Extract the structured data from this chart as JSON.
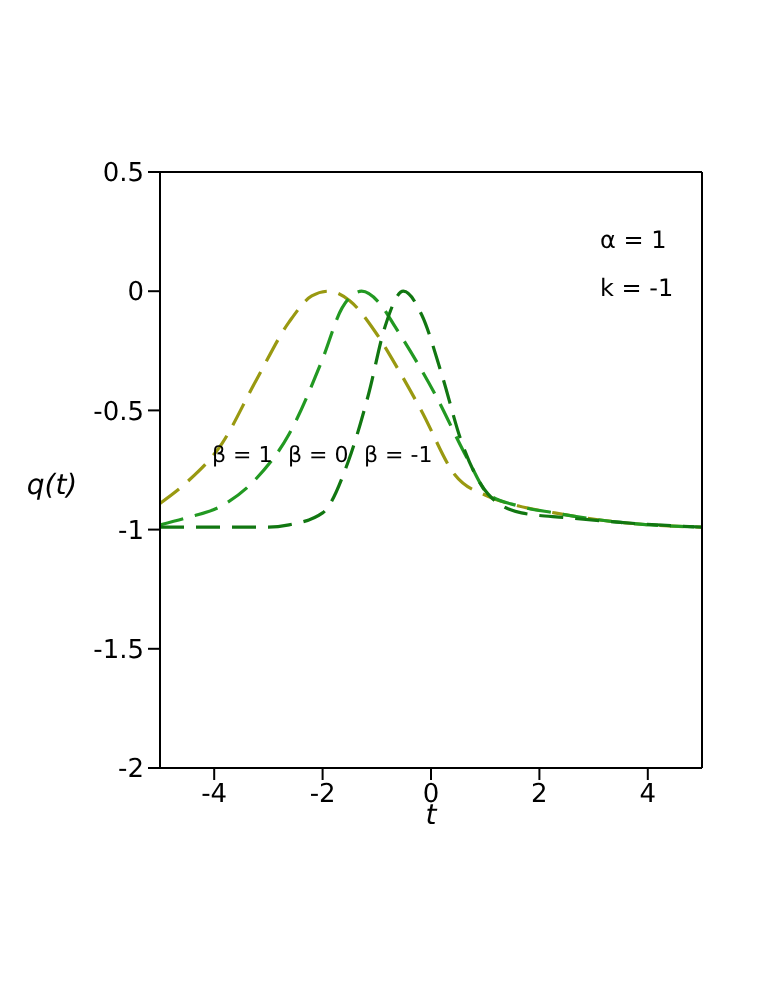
{
  "chart_data": {
    "type": "line",
    "xlabel": "t",
    "ylabel": "q(t)",
    "xlim": [
      -5,
      5
    ],
    "ylim": [
      -2,
      0.5
    ],
    "xticks": [
      -4,
      -2,
      0,
      2,
      4
    ],
    "yticks": [
      -2,
      -1.5,
      -1,
      -0.5,
      0,
      0.5
    ],
    "grid": false,
    "legend": false,
    "line_style": "dashed",
    "marker": "none",
    "annotations": [
      "α = 1",
      "k = -1",
      "β = 1",
      "β = 0",
      "β = -1"
    ],
    "series": [
      {
        "color": "#999911",
        "x": [
          -5,
          -4.5,
          -3.86,
          -3.24,
          -2.62,
          -2.2,
          -1.89,
          -1.5,
          -1.03,
          -0.6,
          -0.18,
          0.44,
          1.05,
          1.6,
          2.28,
          3.5,
          5
        ],
        "values": [
          -0.89,
          -0.8,
          -0.64,
          -0.38,
          -0.13,
          -0.02,
          0,
          -0.04,
          -0.17,
          -0.33,
          -0.5,
          -0.77,
          -0.86,
          -0.9,
          -0.93,
          -0.97,
          -0.99
        ]
      },
      {
        "color": "#229922",
        "x": [
          -5,
          -4.5,
          -3.86,
          -3.24,
          -2.62,
          -2.01,
          -1.64,
          -1.28,
          -0.95,
          -0.66,
          0.07,
          0.69,
          1.05,
          1.6,
          2.28,
          3.5,
          5
        ],
        "values": [
          -0.98,
          -0.95,
          -0.9,
          -0.79,
          -0.6,
          -0.29,
          -0.07,
          0,
          -0.05,
          -0.15,
          -0.43,
          -0.71,
          -0.85,
          -0.9,
          -0.93,
          -0.97,
          -0.99
        ]
      },
      {
        "color": "#117711",
        "x": [
          -5,
          -4,
          -3,
          -2.62,
          -2,
          -1.52,
          -1.15,
          -0.85,
          -0.51,
          -0.17,
          0.2,
          0.56,
          1.05,
          1.67,
          2.5,
          3.5,
          5
        ],
        "values": [
          -0.99,
          -0.99,
          -0.99,
          -0.98,
          -0.93,
          -0.71,
          -0.43,
          -0.15,
          0,
          -0.1,
          -0.35,
          -0.63,
          -0.85,
          -0.93,
          -0.95,
          -0.97,
          -0.99
        ]
      }
    ]
  }
}
